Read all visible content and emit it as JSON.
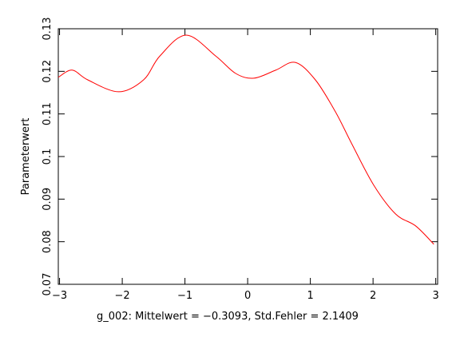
{
  "chart_data": {
    "type": "line",
    "x_label": "g_002: Mittelwert = −0.3093, Std.Fehler = 2.1409",
    "y_label": "Parameterwert",
    "series": [
      {
        "color": "#ff0000",
        "x": [
          -3.02,
          -2.8,
          -2.55,
          -2.06,
          -1.66,
          -1.4,
          -0.98,
          -0.51,
          -0.19,
          0.1,
          0.45,
          0.76,
          1.08,
          1.4,
          1.66,
          2.01,
          2.36,
          2.68,
          2.97
        ],
        "values": [
          0.1186,
          0.1203,
          0.118,
          0.1152,
          0.118,
          0.1236,
          0.1285,
          0.1236,
          0.1195,
          0.1184,
          0.1203,
          0.1221,
          0.118,
          0.1105,
          0.103,
          0.0933,
          0.0865,
          0.0837,
          0.0794
        ]
      }
    ],
    "xlim": [
      -3.02,
      3.03
    ],
    "ylim": [
      0.07,
      0.13
    ],
    "xticks": [
      {
        "value": -3,
        "label": "−3"
      },
      {
        "value": -2,
        "label": "−2"
      },
      {
        "value": -1,
        "label": "−1"
      },
      0,
      1,
      2,
      3
    ],
    "yticks": [
      0.07,
      0.08,
      0.09,
      0.1,
      0.11,
      0.12,
      0.13
    ]
  }
}
